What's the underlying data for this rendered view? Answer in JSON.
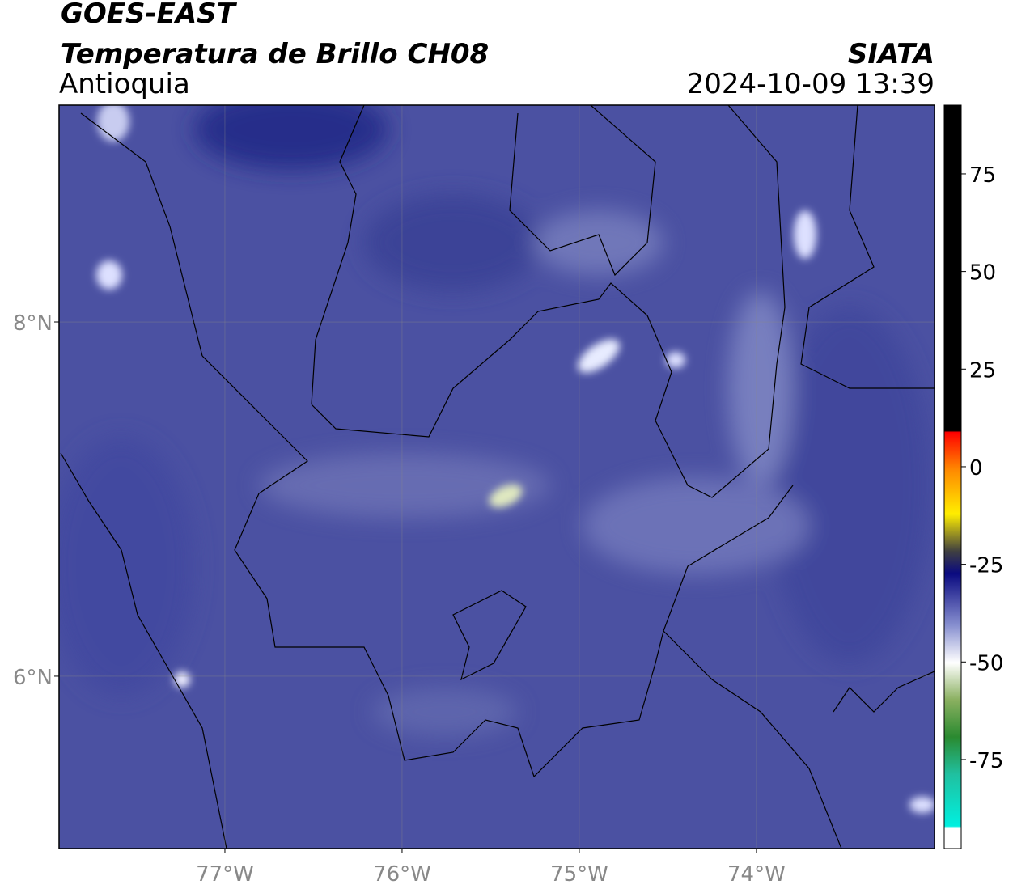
{
  "header": {
    "satellite": "GOES-EAST",
    "product": "Temperatura de Brillo CH08",
    "region": "Antioquia",
    "source": "SIATA",
    "timestamp": "2024-10-09 13:39"
  },
  "map": {
    "xlim": [
      -77.936,
      -72.995
    ],
    "ylim": [
      5.027,
      9.224
    ],
    "xticks": [
      {
        "value": -77,
        "label": "77°W"
      },
      {
        "value": -76,
        "label": "76°W"
      },
      {
        "value": -75,
        "label": "75°W"
      },
      {
        "value": -74,
        "label": "74°W"
      }
    ],
    "yticks": [
      {
        "value": 8,
        "label": "8°N"
      },
      {
        "value": 6,
        "label": "6°N"
      }
    ],
    "grid": true
  },
  "colorbar": {
    "lim": [
      -97.8,
      92.6
    ],
    "ticks": [
      75,
      50,
      25,
      0,
      -25,
      -50,
      -75
    ]
  }
}
